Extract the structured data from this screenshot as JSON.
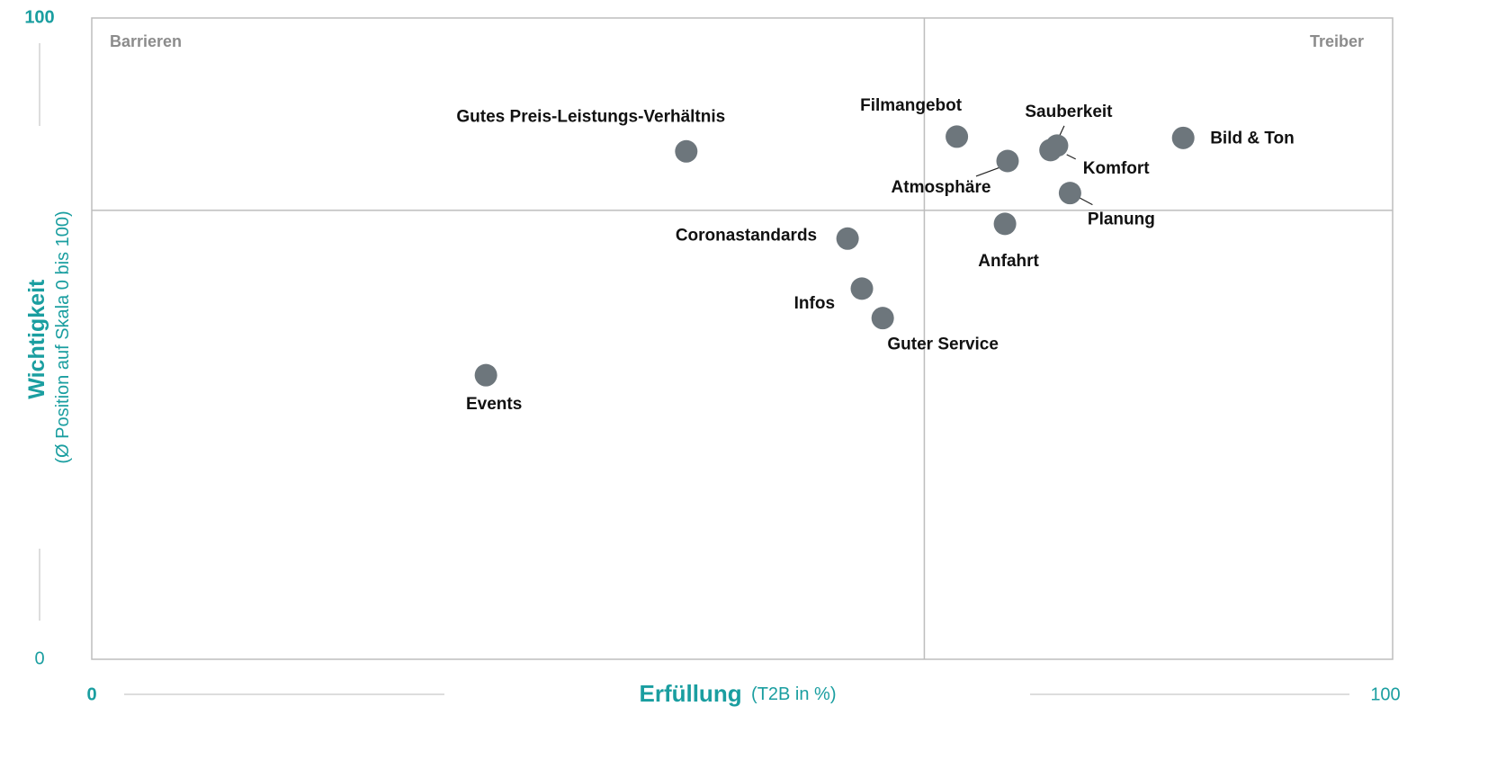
{
  "chart_data": {
    "type": "scatter",
    "x_label": "Erfüllung",
    "x_label_note": "(T2B in %)",
    "y_label": "Wichtigkeit",
    "y_label_note": "(Ø Position auf Skala 0 bis 100)",
    "quadrant_labels": [
      "Barrieren",
      "Treiber"
    ],
    "xlim": [
      0,
      100
    ],
    "xticks": [
      0,
      100
    ],
    "ylim": [
      0,
      100
    ],
    "yticks": [
      0,
      100
    ],
    "quadrant_lines": {
      "x": 64,
      "y": 70
    },
    "color": "#6d767c",
    "series": [
      {
        "labels": [
          "Gutes Preis-Leistungs-Verhältnis",
          "Filmangebot",
          "Atmosphäre",
          "Sauberkeit",
          "Komfort",
          "Bild & Ton",
          "Planung",
          "Anfahrt",
          "Coronastandards",
          "Infos",
          "Guter Service",
          "Events"
        ],
        "x": [
          45.7,
          66.5,
          70.4,
          74.2,
          73.7,
          83.9,
          75.2,
          70.2,
          58.1,
          59.2,
          60.8,
          30.3
        ],
        "values": [
          79.2,
          81.5,
          77.7,
          80.1,
          79.4,
          81.3,
          72.7,
          67.9,
          65.6,
          57.8,
          53.2,
          44.3
        ]
      }
    ]
  }
}
